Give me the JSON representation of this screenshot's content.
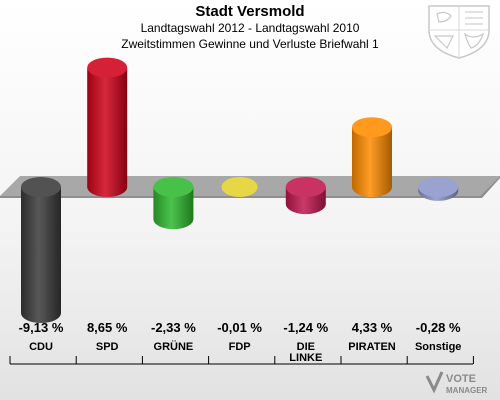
{
  "header": {
    "title": "Stadt Versmold",
    "subtitle1": "Landtagswahl 2012 - Landtagswahl 2010",
    "subtitle2": "Zweitstimmen Gewinne und Verluste Briefwahl 1"
  },
  "logo": {
    "line1": "VOTE",
    "line2": "MANAGER"
  },
  "chart_data": {
    "type": "bar",
    "categories": [
      "CDU",
      "SPD",
      "GRÜNE",
      "FDP",
      "DIE LINKE",
      "PIRATEN",
      "Sonstige"
    ],
    "category_lines": [
      [
        "CDU"
      ],
      [
        "SPD"
      ],
      [
        "GRÜNE"
      ],
      [
        "FDP"
      ],
      [
        "DIE",
        "LINKE"
      ],
      [
        "PIRATEN"
      ],
      [
        "Sonstige"
      ]
    ],
    "values": [
      -9.13,
      8.65,
      -2.33,
      -0.01,
      -1.24,
      4.33,
      -0.28
    ],
    "value_labels": [
      "-9,13 %",
      "8,65 %",
      "-2,33 %",
      "-0,01 %",
      "-1,24 %",
      "4,33 %",
      "-0,28 %"
    ],
    "colors": [
      "#3a3a3a",
      "#d0021b",
      "#2eb82e",
      "#e6d53c",
      "#c0174e",
      "#ff8c00",
      "#8c96c8"
    ],
    "ylim": [
      -9.13,
      8.65
    ],
    "grid": false,
    "legend": "none"
  }
}
